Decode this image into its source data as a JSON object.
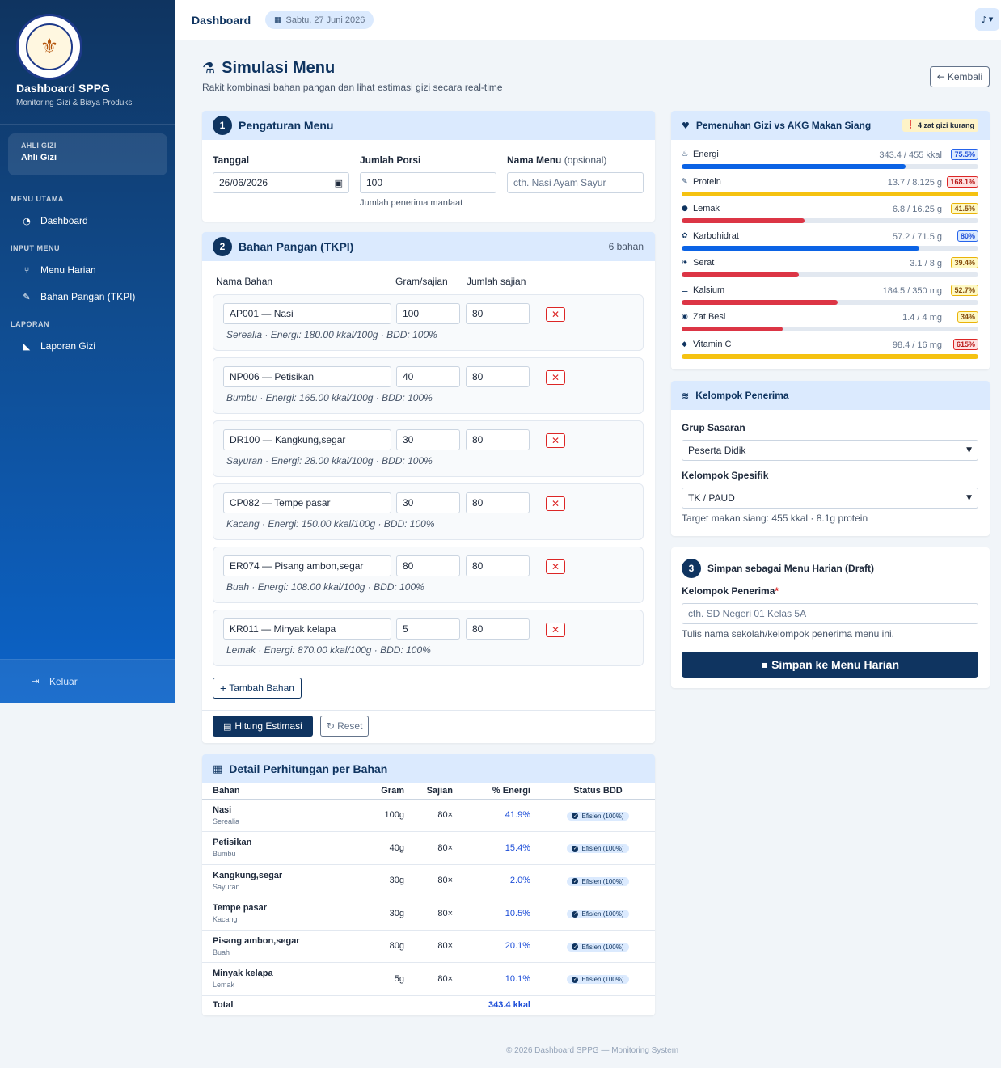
{
  "sidebar": {
    "brand_title": "Dashboard SPPG",
    "brand_sub": "Monitoring Gizi & Biaya Produksi",
    "logo_text": "BADAN GIZI NASIONAL · REPUBLIK INDONESIA",
    "role_label": "AHLI GIZI",
    "role_name": "Ahli Gizi",
    "section_main": "MENU UTAMA",
    "item_dashboard": "Dashboard",
    "section_input": "INPUT MENU",
    "item_menu_harian": "Menu Harian",
    "item_bahan_pangan": "Bahan Pangan (TKPI)",
    "section_laporan": "LAPORAN",
    "item_laporan_gizi": "Laporan Gizi",
    "logout": "Keluar"
  },
  "topbar": {
    "title": "Dashboard",
    "date": "Sabtu, 27 Juni 2026"
  },
  "page": {
    "title": "Simulasi Menu",
    "subtitle": "Rakit kombinasi bahan pangan dan lihat estimasi gizi secara real-time",
    "back_label": "Kembali"
  },
  "settings": {
    "step": "1",
    "title": "Pengaturan Menu",
    "date_label": "Tanggal",
    "date_value": "26/06/2026",
    "porsi_label": "Jumlah Porsi",
    "porsi_value": "100",
    "porsi_hint": "Jumlah penerima manfaat",
    "menu_label": "Nama Menu",
    "menu_label_opt": "(opsional)",
    "menu_placeholder": "cth. Nasi Ayam Sayur"
  },
  "ingredients": {
    "step": "2",
    "title": "Bahan Pangan (TKPI)",
    "count": "6 bahan",
    "col_name": "Nama Bahan",
    "col_gram": "Gram/sajian",
    "col_sajian": "Jumlah sajian",
    "items": [
      {
        "name": "AP001 — Nasi",
        "gram": "100",
        "sajian": "80",
        "meta": "Serealia · Energi: 180.00 kkal/100g · BDD: 100%"
      },
      {
        "name": "NP006 — Petisikan",
        "gram": "40",
        "sajian": "80",
        "meta": "Bumbu · Energi: 165.00 kkal/100g · BDD: 100%"
      },
      {
        "name": "DR100 — Kangkung,segar",
        "gram": "30",
        "sajian": "80",
        "meta": "Sayuran · Energi: 28.00 kkal/100g · BDD: 100%"
      },
      {
        "name": "CP082 — Tempe pasar",
        "gram": "30",
        "sajian": "80",
        "meta": "Kacang · Energi: 150.00 kkal/100g · BDD: 100%"
      },
      {
        "name": "ER074 — Pisang ambon,segar",
        "gram": "80",
        "sajian": "80",
        "meta": "Buah · Energi: 108.00 kkal/100g · BDD: 100%"
      },
      {
        "name": "KR011 — Minyak kelapa",
        "gram": "5",
        "sajian": "80",
        "meta": "Lemak · Energi: 870.00 kkal/100g · BDD: 100%"
      }
    ],
    "add_label": "Tambah Bahan",
    "calc_label": "Hitung Estimasi",
    "reset_label": "Reset"
  },
  "detail": {
    "title": "Detail Perhitungan per Bahan",
    "headers": [
      "Bahan",
      "Gram",
      "Sajian",
      "% Energi",
      "Status BDD"
    ],
    "rows": [
      {
        "name": "Nasi",
        "cat": "Serealia",
        "gram": "100g",
        "sajian": "80×",
        "pct": "41.9%",
        "status": "Efisien (100%)"
      },
      {
        "name": "Petisikan",
        "cat": "Bumbu",
        "gram": "40g",
        "sajian": "80×",
        "pct": "15.4%",
        "status": "Efisien (100%)"
      },
      {
        "name": "Kangkung,segar",
        "cat": "Sayuran",
        "gram": "30g",
        "sajian": "80×",
        "pct": "2.0%",
        "status": "Efisien (100%)"
      },
      {
        "name": "Tempe pasar",
        "cat": "Kacang",
        "gram": "30g",
        "sajian": "80×",
        "pct": "10.5%",
        "status": "Efisien (100%)"
      },
      {
        "name": "Pisang ambon,segar",
        "cat": "Buah",
        "gram": "80g",
        "sajian": "80×",
        "pct": "20.1%",
        "status": "Efisien (100%)"
      },
      {
        "name": "Minyak kelapa",
        "cat": "Lemak",
        "gram": "5g",
        "sajian": "80×",
        "pct": "10.1%",
        "status": "Efisien (100%)"
      }
    ],
    "total_label": "Total",
    "total_value": "343.4 kkal"
  },
  "nutrition": {
    "title": "Pemenuhan Gizi vs AKG Makan Siang",
    "badge": "4 zat gizi kurang",
    "items": [
      {
        "name": "Energi",
        "icon": "fire-icon",
        "glyph": "♨",
        "value": "343.4 / 455 kkal",
        "pct": "75.5%",
        "fill": 0.755,
        "color": "#0b63e5",
        "badge_bg": "#dbeafe",
        "badge_border": "#2563eb",
        "badge_text": "#1d4ed8"
      },
      {
        "name": "Protein",
        "icon": "drumstick-icon",
        "glyph": "✎",
        "value": "13.7 / 8.125 g",
        "pct": "168.1%",
        "fill": 1.0,
        "color": "#f5c211",
        "badge_bg": "#fee2e2",
        "badge_border": "#dc2626",
        "badge_text": "#b91c1c"
      },
      {
        "name": "Lemak",
        "icon": "droplet-icon",
        "glyph": "●",
        "value": "6.8 / 16.25 g",
        "pct": "41.5%",
        "fill": 0.415,
        "color": "#dc3545",
        "badge_bg": "#fef9c3",
        "badge_border": "#eab308",
        "badge_text": "#854d0e"
      },
      {
        "name": "Karbohidrat",
        "icon": "wheat-icon",
        "glyph": "✿",
        "value": "57.2 / 71.5 g",
        "pct": "80%",
        "fill": 0.8,
        "color": "#0b63e5",
        "badge_bg": "#dbeafe",
        "badge_border": "#2563eb",
        "badge_text": "#1d4ed8"
      },
      {
        "name": "Serat",
        "icon": "leaf-icon",
        "glyph": "❧",
        "value": "3.1 / 8 g",
        "pct": "39.4%",
        "fill": 0.394,
        "color": "#dc3545",
        "badge_bg": "#fef9c3",
        "badge_border": "#eab308",
        "badge_text": "#854d0e"
      },
      {
        "name": "Kalsium",
        "icon": "bone-icon",
        "glyph": "⚍",
        "value": "184.5 / 350 mg",
        "pct": "52.7%",
        "fill": 0.527,
        "color": "#dc3545",
        "badge_bg": "#fef9c3",
        "badge_border": "#eab308",
        "badge_text": "#854d0e"
      },
      {
        "name": "Zat Besi",
        "icon": "ring-icon",
        "glyph": "◉",
        "value": "1.4 / 4 mg",
        "pct": "34%",
        "fill": 0.34,
        "color": "#dc3545",
        "badge_bg": "#fef9c3",
        "badge_border": "#eab308",
        "badge_text": "#854d0e"
      },
      {
        "name": "Vitamin C",
        "icon": "citrus-icon",
        "glyph": "◆",
        "value": "98.4 / 16 mg",
        "pct": "615%",
        "fill": 1.0,
        "color": "#f5c211",
        "badge_bg": "#fee2e2",
        "badge_border": "#dc2626",
        "badge_text": "#b91c1c"
      }
    ]
  },
  "recipients": {
    "title": "Kelompok Penerima",
    "grup_label": "Grup Sasaran",
    "grup_value": "Peserta Didik",
    "spesifik_label": "Kelompok Spesifik",
    "spesifik_value": "TK / PAUD",
    "target_text": "Target makan siang: 455 kkal · 8.1g protein"
  },
  "save": {
    "step": "3",
    "title": "Simpan sebagai Menu Harian (Draft)",
    "field_label": "Kelompok Penerima",
    "required_mark": "*",
    "placeholder": "cth. SD Negeri 01 Kelas 5A",
    "hint": "Tulis nama sekolah/kelompok penerima menu ini.",
    "button": "Simpan ke Menu Harian"
  },
  "footer": {
    "copyright": "© 2026 Dashboard SPPG — Monitoring System"
  }
}
